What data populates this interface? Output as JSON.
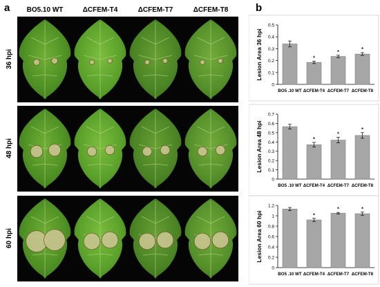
{
  "figure": {
    "panel_a_label": "a",
    "panel_b_label": "b",
    "strains": [
      "BO5.10 WT",
      "ΔCFEM-T4",
      "ΔCFEM-T7",
      "ΔCFEM-T8"
    ],
    "timepoints": [
      "36 hpi",
      "48 hpi",
      "60 hpi"
    ],
    "colors": {
      "bar_fill": "#a6a6a6",
      "bar_stroke": "#7f7f7f",
      "leaf_green": "#5a9a2a",
      "lesion": "#c9c58f",
      "background": "#050505"
    }
  },
  "chart_data": [
    {
      "type": "bar",
      "ylabel": "Lesion Area 36 hpi",
      "categories": [
        "BO5 .10 WT",
        "ΔCFEM-T4",
        "ΔCFEM-T7",
        "ΔCFEM-T8"
      ],
      "values": [
        0.34,
        0.185,
        0.235,
        0.255
      ],
      "errors": [
        0.025,
        0.01,
        0.01,
        0.012
      ],
      "significance": [
        "",
        "*",
        "*",
        "*"
      ],
      "ylim": [
        0,
        0.5
      ],
      "yticks": [
        "0",
        "0.1",
        "0.2",
        "0.3",
        "0.4",
        "0.5"
      ],
      "ytick_values": [
        0,
        0.1,
        0.2,
        0.3,
        0.4,
        0.5
      ],
      "grid": false
    },
    {
      "type": "bar",
      "ylabel": "Lesion Area 48 hpi",
      "categories": [
        "BO5 .10 WT",
        "ΔCFEM-T4",
        "ΔCFEM-T7",
        "ΔCFEM-T8"
      ],
      "values": [
        0.565,
        0.37,
        0.42,
        0.47
      ],
      "errors": [
        0.025,
        0.025,
        0.03,
        0.03
      ],
      "significance": [
        "",
        "*",
        "*",
        "*"
      ],
      "ylim": [
        0,
        0.7
      ],
      "yticks": [
        "0",
        "0.1",
        "0.2",
        "0.3",
        "0.4",
        "0.5",
        "0.6",
        "0.7"
      ],
      "ytick_values": [
        0,
        0.1,
        0.2,
        0.3,
        0.4,
        0.5,
        0.6,
        0.7
      ],
      "grid": false
    },
    {
      "type": "bar",
      "ylabel": "Lesion Area 60 hpi",
      "categories": [
        "BO5 .10 WT",
        "ΔCFEM-T4",
        "ΔCFEM-T7",
        "ΔCFEM-T8"
      ],
      "values": [
        1.13,
        0.92,
        1.05,
        1.04
      ],
      "errors": [
        0.03,
        0.03,
        0.015,
        0.03
      ],
      "significance": [
        "",
        "*",
        "*",
        "*"
      ],
      "ylim": [
        0,
        1.2
      ],
      "yticks": [
        "0",
        "0.2",
        "0.4",
        "0.6",
        "0.8",
        "1",
        "1.2"
      ],
      "ytick_values": [
        0,
        0.2,
        0.4,
        0.6,
        0.8,
        1.0,
        1.2
      ],
      "grid": false
    }
  ]
}
